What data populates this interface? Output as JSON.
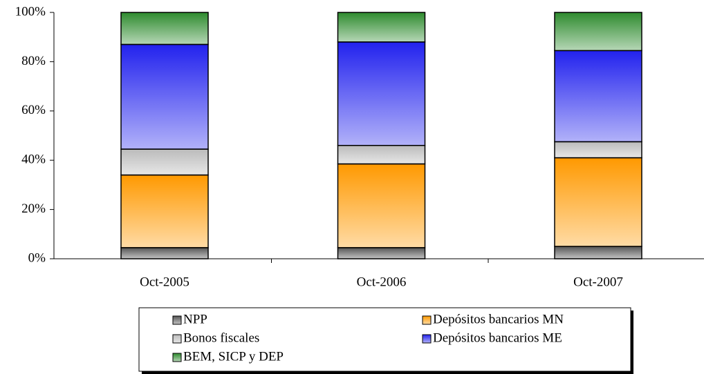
{
  "chart_data": {
    "type": "stacked_bar",
    "categories": [
      "Oct-2005",
      "Oct-2006",
      "Oct-2007"
    ],
    "series": [
      {
        "name": "NPP",
        "color": "#555555",
        "values": [
          4.5,
          4.5,
          5
        ]
      },
      {
        "name": "Depósitos bancarios MN",
        "color": "#ff9900",
        "values": [
          29.5,
          34,
          36
        ]
      },
      {
        "name": "Bonos fiscales",
        "color": "#bbbbbb",
        "values": [
          10.5,
          7.5,
          6.5
        ]
      },
      {
        "name": "Depósitos bancarios ME",
        "color": "#2222ee",
        "values": [
          42.5,
          42,
          37
        ]
      },
      {
        "name": "BEM, SICP y DEP",
        "color": "#2e8b2e",
        "values": [
          13,
          12,
          15.5
        ]
      }
    ],
    "ylim": [
      0,
      100
    ],
    "yticks": [
      {
        "value": 0,
        "label": "0%"
      },
      {
        "value": 20,
        "label": "20%"
      },
      {
        "value": 40,
        "label": "40%"
      },
      {
        "value": 60,
        "label": "60%"
      },
      {
        "value": 80,
        "label": "80%"
      },
      {
        "value": 100,
        "label": "100%"
      }
    ],
    "legend": "bottom"
  }
}
